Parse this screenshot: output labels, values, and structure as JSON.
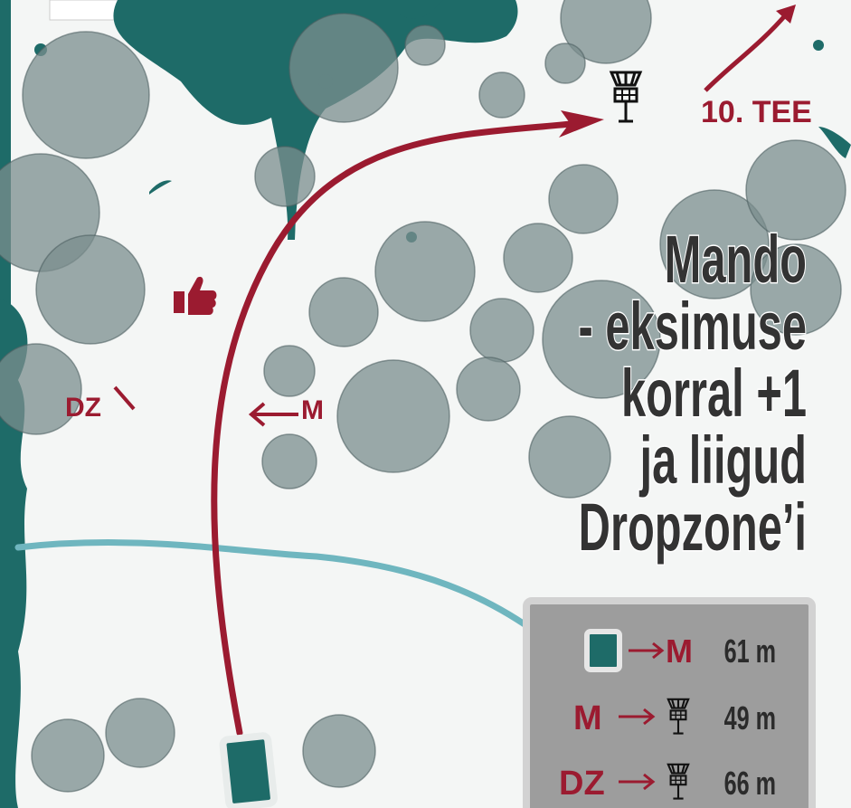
{
  "map": {
    "tee_label": "10. TEE",
    "dropzone_label": "DZ",
    "mando_label": "M",
    "note_lines": [
      "Mando",
      "- eksimuse",
      "korral +1",
      "ja liigud",
      "Dropzone’i"
    ],
    "legend": [
      {
        "to": "M",
        "distance": "61 m"
      },
      {
        "from": "M",
        "distance": "49 m"
      },
      {
        "from": "DZ",
        "distance": "66 m"
      }
    ]
  }
}
